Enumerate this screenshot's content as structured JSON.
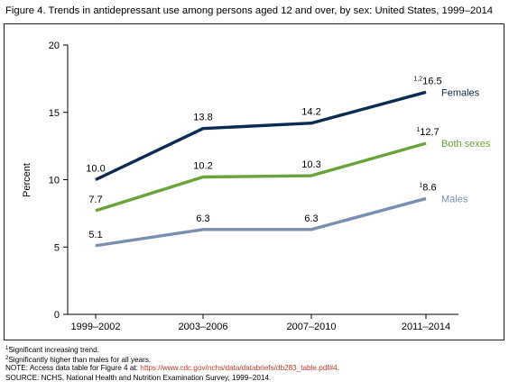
{
  "figure": {
    "title": "Figure 4. Trends in antidepressant use among persons aged 12 and over, by sex: United States, 1999–2014"
  },
  "chart_data": {
    "type": "line",
    "categories": [
      "1999–2002",
      "2003–2006",
      "2007–2010",
      "2011–2014"
    ],
    "ylabel": "Percent",
    "ylim": [
      0,
      20
    ],
    "yticks": [
      0,
      5,
      10,
      15,
      20
    ],
    "grid": false,
    "legend": "inline labels at right end of each line",
    "series": [
      {
        "name": "Females",
        "values": [
          10.0,
          13.8,
          14.2,
          16.5
        ],
        "labels": [
          "10.0",
          "13.8",
          "14.2",
          "16.5"
        ],
        "last_mark": "1,2",
        "color": "#0d2b52"
      },
      {
        "name": "Both sexes",
        "values": [
          7.7,
          10.2,
          10.3,
          12.7
        ],
        "labels": [
          "7.7",
          "10.2",
          "10.3",
          "12.7"
        ],
        "last_mark": "1",
        "color": "#6aa23c"
      },
      {
        "name": "Males",
        "values": [
          5.1,
          6.3,
          6.3,
          8.6
        ],
        "labels": [
          "5.1",
          "6.3",
          "6.3",
          "8.6"
        ],
        "last_mark": "1",
        "color": "#7a8fb0"
      }
    ]
  },
  "footnotes": {
    "note1_mark": "1",
    "note1": "Significant increasing trend.",
    "note2_mark": "2",
    "note2": "Significantly higher than males for all years.",
    "note3_prefix": "NOTE: Access data table for Figure 4 at: ",
    "note3_link": "https://www.cdc.gov/nchs/data/databriefs/db283_table.pdf#4",
    "note3_suffix": ".",
    "source": "SOURCE: NCHS, National Health and Nutrition Examination Survey, 1999–2014."
  }
}
